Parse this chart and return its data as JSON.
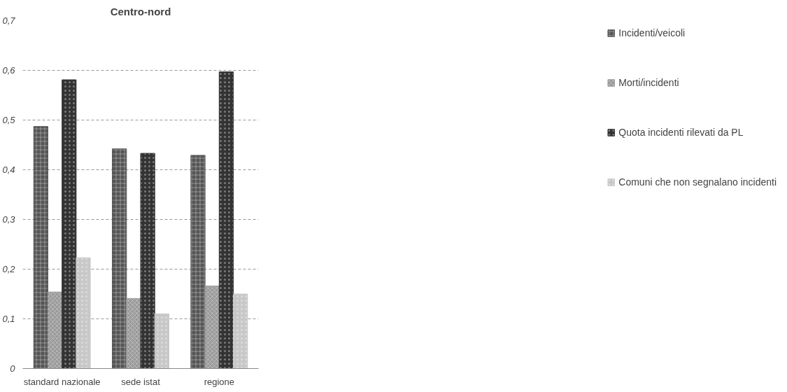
{
  "chart_data": {
    "type": "bar",
    "title": "Centro-nord",
    "categories": [
      "standard nazionale",
      "sede istat",
      "regione"
    ],
    "series": [
      {
        "name": "Incidenti/veicoli",
        "color": "#555555",
        "values": [
          0.487,
          0.442,
          0.429
        ]
      },
      {
        "name": "Morti/incidenti",
        "color": "#9a9a9a",
        "values": [
          0.154,
          0.141,
          0.166
        ]
      },
      {
        "name": "Quota incidenti rilevati da PL",
        "color": "#333333",
        "values": [
          0.581,
          0.433,
          0.597
        ]
      },
      {
        "name": "Comuni che non segnalano incidenti",
        "color": "#c8c8c8",
        "values": [
          0.223,
          0.11,
          0.15
        ]
      }
    ],
    "ylim": [
      0,
      0.7
    ],
    "yticks": [
      0,
      {
        "value": 0.1,
        "label": "0,1"
      },
      {
        "value": 0.2,
        "label": "0,2"
      },
      {
        "value": 0.3,
        "label": "0,3"
      },
      {
        "value": 0.4,
        "label": "0,4"
      },
      {
        "value": 0.5,
        "label": "0,5"
      },
      {
        "value": 0.6,
        "label": "0,6"
      },
      {
        "value": 0.7,
        "label": "0,7"
      }
    ],
    "grid": "y",
    "legend": "right"
  }
}
